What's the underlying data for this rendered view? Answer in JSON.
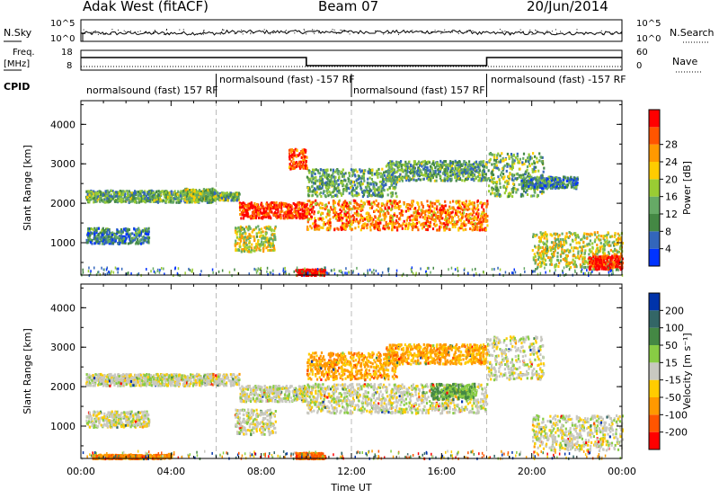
{
  "header": {
    "title": "Adak West (fitACF)",
    "beam": "Beam 07",
    "date": "20/Jun/2014"
  },
  "top_panels": {
    "nsky_label": "N.Sky",
    "nsearch_label": "N.Search",
    "freq_label": "Freq.",
    "freq_unit": "[MHz]",
    "nave_label": "Nave",
    "cpid_label": "CPID",
    "noise_ticks_left": [
      "10^5",
      "10^0"
    ],
    "noise_ticks_right": [
      "10^5",
      "10^0"
    ],
    "freq_ticks": [
      "18",
      "8"
    ],
    "nave_ticks": [
      "60",
      "0"
    ],
    "cpid_segments": [
      {
        "label": "normalsound (fast) 157 RF",
        "start": 0,
        "end": 6
      },
      {
        "label": "normalsound (fast) -157 RF",
        "start": 6,
        "end": 12
      },
      {
        "label": "normalsound (fast) 157 RF",
        "start": 12,
        "end": 18
      },
      {
        "label": "normalsound (fast) -157 RF",
        "start": 18,
        "end": 24
      }
    ]
  },
  "chart_data": [
    {
      "type": "heatmap",
      "ylabel": "Slant Range [km]",
      "ylim": [
        180,
        4600
      ],
      "xlim": [
        0,
        24
      ],
      "yticks": [
        "1000",
        "2000",
        "3000",
        "4000"
      ],
      "colorbar": {
        "label": "Power [dB]",
        "ticks": [
          "4",
          "8",
          "12",
          "16",
          "20",
          "24",
          "28"
        ],
        "colors": [
          "#0033ff",
          "#3366bb",
          "#448844",
          "#66aa66",
          "#99cc33",
          "#ffcc00",
          "#ff9900",
          "#ff5500",
          "#ff0000"
        ]
      },
      "features": [
        {
          "start": 0.2,
          "end": 5.8,
          "range": [
            2050,
            2350
          ],
          "level": 0.35
        },
        {
          "start": 4.5,
          "end": 6.0,
          "range": [
            2100,
            2400
          ],
          "level": 0.45
        },
        {
          "start": 5.5,
          "end": 7.0,
          "range": [
            2100,
            2300
          ],
          "level": 0.4
        },
        {
          "start": 7.0,
          "end": 10.0,
          "range": [
            1650,
            2050
          ],
          "level": 0.9
        },
        {
          "start": 9.2,
          "end": 10.0,
          "range": [
            2900,
            3400
          ],
          "level": 0.85
        },
        {
          "start": 6.8,
          "end": 8.6,
          "range": [
            800,
            1450
          ],
          "level": 0.55
        },
        {
          "start": 0.2,
          "end": 3.0,
          "range": [
            1000,
            1400
          ],
          "level": 0.25
        },
        {
          "start": 10.0,
          "end": 18.0,
          "range": [
            1350,
            2100
          ],
          "level": 0.75
        },
        {
          "start": 10.0,
          "end": 14.0,
          "range": [
            2200,
            2900
          ],
          "level": 0.35
        },
        {
          "start": 13.5,
          "end": 18.0,
          "range": [
            2600,
            3100
          ],
          "level": 0.35
        },
        {
          "start": 18.0,
          "end": 20.5,
          "range": [
            2200,
            3300
          ],
          "level": 0.4
        },
        {
          "start": 19.5,
          "end": 22.0,
          "range": [
            2400,
            2700
          ],
          "level": 0.25
        },
        {
          "start": 20.0,
          "end": 24.0,
          "range": [
            400,
            1300
          ],
          "level": 0.55
        },
        {
          "start": 22.5,
          "end": 24.0,
          "range": [
            350,
            700
          ],
          "level": 0.95
        },
        {
          "start": 9.5,
          "end": 10.8,
          "range": [
            200,
            350
          ],
          "level": 1.0
        }
      ]
    },
    {
      "type": "heatmap",
      "ylabel": "Slant Range [km]",
      "xlabel": "Time UT",
      "ylim": [
        180,
        4600
      ],
      "xlim": [
        0,
        24
      ],
      "yticks": [
        "1000",
        "2000",
        "3000",
        "4000"
      ],
      "xticks": [
        "00:00",
        "04:00",
        "08:00",
        "12:00",
        "16:00",
        "20:00",
        "00:00"
      ],
      "colorbar": {
        "label": "Velocity [m s⁻¹]",
        "ticks": [
          "200",
          "100",
          "50",
          "15",
          "-15",
          "-50",
          "-100",
          "-200"
        ],
        "colors": [
          "#0033aa",
          "#336666",
          "#448844",
          "#88cc44",
          "#c8c8c0",
          "#ffcc00",
          "#ff9900",
          "#ff5500",
          "#ff0000"
        ]
      },
      "features": [
        {
          "start": 0.2,
          "end": 7.0,
          "range": [
            2050,
            2350
          ],
          "vel": 0.0
        },
        {
          "start": 7.0,
          "end": 10.0,
          "range": [
            1650,
            2050
          ],
          "vel": 0.0
        },
        {
          "start": 6.8,
          "end": 8.6,
          "range": [
            800,
            1450
          ],
          "vel": 0.0
        },
        {
          "start": 0.2,
          "end": 3.0,
          "range": [
            1000,
            1400
          ],
          "vel": 0.0
        },
        {
          "start": 10.0,
          "end": 18.0,
          "range": [
            1350,
            2100
          ],
          "vel": 0.0
        },
        {
          "start": 10.0,
          "end": 14.0,
          "range": [
            2200,
            2900
          ],
          "vel": -0.4
        },
        {
          "start": 13.5,
          "end": 18.0,
          "range": [
            2600,
            3100
          ],
          "vel": -0.4
        },
        {
          "start": 15.5,
          "end": 17.5,
          "range": [
            1700,
            2100
          ],
          "vel": 0.35
        },
        {
          "start": 18.0,
          "end": 20.5,
          "range": [
            2200,
            3300
          ],
          "vel": 0.0
        },
        {
          "start": 20.0,
          "end": 24.0,
          "range": [
            400,
            1300
          ],
          "vel": 0.0
        },
        {
          "start": 9.5,
          "end": 10.8,
          "range": [
            200,
            350
          ],
          "vel": -0.6
        },
        {
          "start": 0.5,
          "end": 4.0,
          "range": [
            200,
            300
          ],
          "vel": -0.5
        }
      ]
    }
  ]
}
